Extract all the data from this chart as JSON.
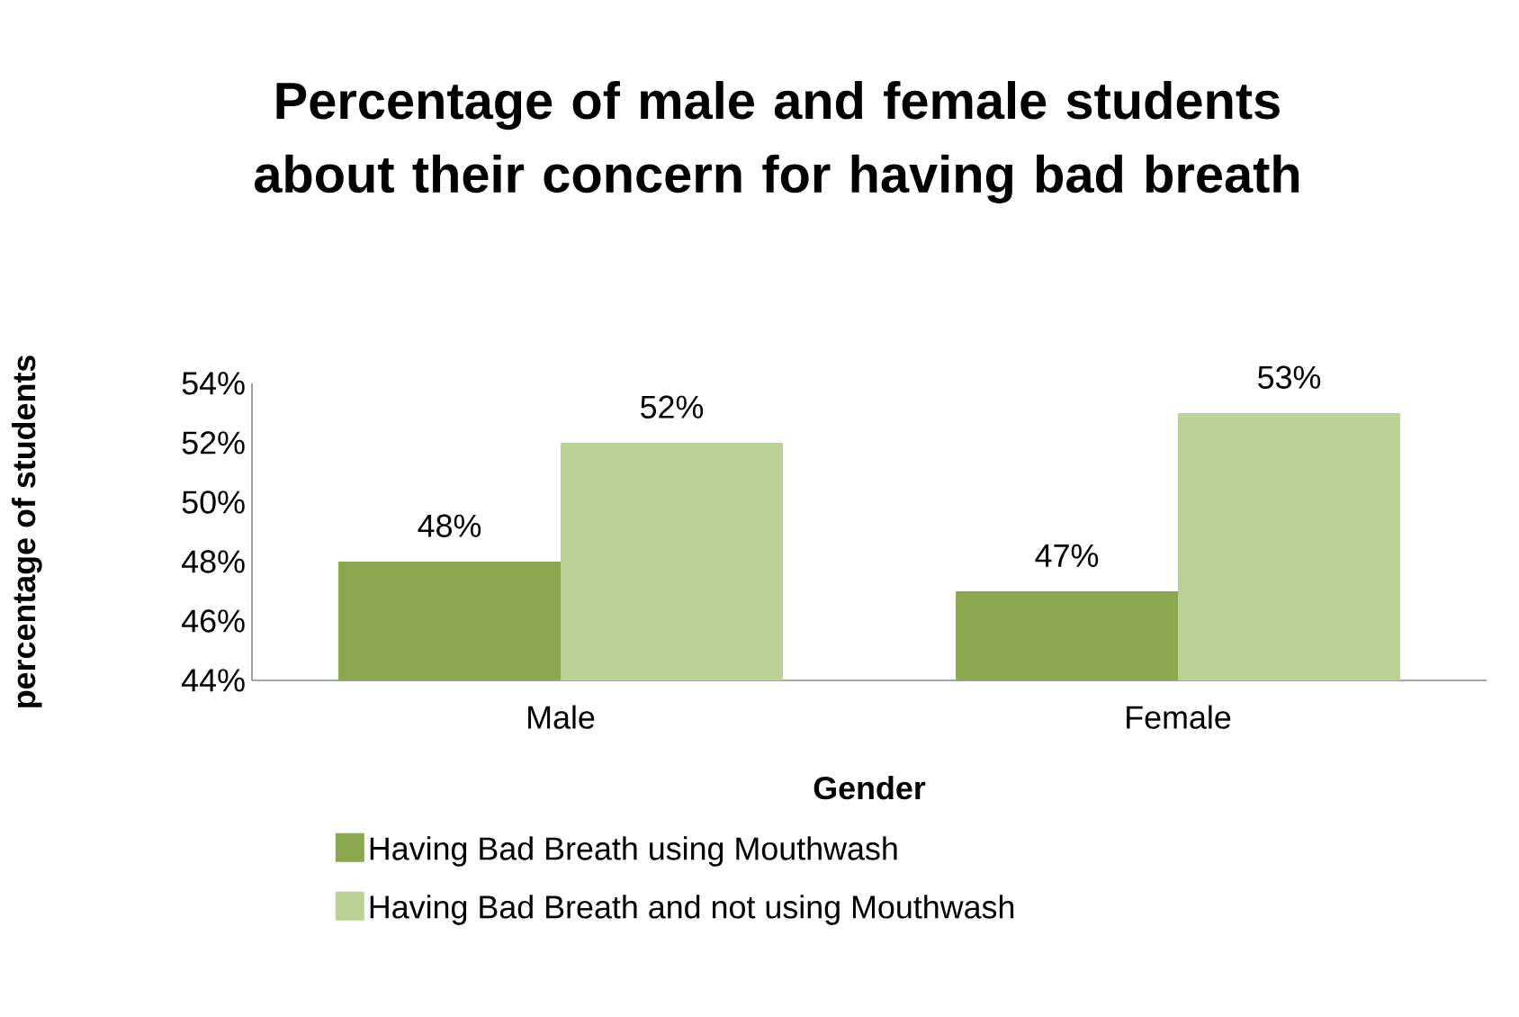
{
  "chart_data": {
    "type": "bar",
    "title": "Percentage of male and female students about their concern for having bad breath",
    "xlabel": "Gender",
    "ylabel": "percentage of students",
    "categories": [
      "Male",
      "Female"
    ],
    "series": [
      {
        "name": "Having Bad Breath using Mouthwash",
        "color": "#8aa84e",
        "values": [
          48,
          47
        ],
        "value_labels": [
          "48%",
          "47%"
        ]
      },
      {
        "name": "Having Bad Breath and not using Mouthwash",
        "color": "#bcd196",
        "values": [
          52,
          53
        ],
        "value_labels": [
          "52%",
          "53%"
        ]
      }
    ],
    "ylim": [
      44,
      54
    ],
    "yticks": [
      {
        "value": 44,
        "label": "44%"
      },
      {
        "value": 46,
        "label": "46%"
      },
      {
        "value": 48,
        "label": "48%"
      },
      {
        "value": 50,
        "label": "50%"
      },
      {
        "value": 52,
        "label": "52%"
      },
      {
        "value": 54,
        "label": "54%"
      }
    ],
    "grid": false,
    "legend": "bottom"
  }
}
